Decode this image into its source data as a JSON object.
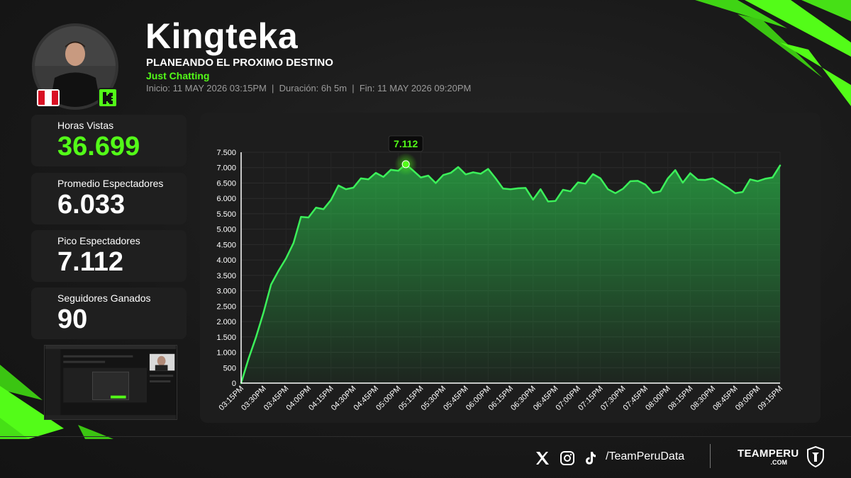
{
  "streamer": {
    "name": "Kingteka",
    "title": "PLANEANDO EL PROXIMO DESTINO",
    "category": "Just Chatting",
    "meta": "Inicio: 11 MAY 2026 03:15PM  |  Duración: 6h 5m  |  Fin: 11 MAY 2026 09:20PM"
  },
  "stats": [
    {
      "label": "Horas Vistas",
      "value": "36.699",
      "accent": true
    },
    {
      "label": "Promedio Espectadores",
      "value": "6.033",
      "accent": false
    },
    {
      "label": "Pico Espectadores",
      "value": "7.112",
      "accent": false
    },
    {
      "label": "Seguidores Ganados",
      "value": "90",
      "accent": false
    }
  ],
  "footer": {
    "handle": "/TeamPeruData",
    "brand": "TEAMPERU",
    "brand_suffix": ".COM",
    "icons": [
      "x-icon",
      "instagram-icon",
      "tiktok-icon"
    ]
  },
  "colors": {
    "accent": "#53fc18",
    "line": "#3cf05a",
    "background": "#161616",
    "card": "#1f1f1f",
    "flag_red": "#d91023"
  },
  "chart_data": {
    "type": "area",
    "ylim": [
      0,
      7500
    ],
    "y_ticks": [
      0,
      500,
      1000,
      1500,
      2000,
      2500,
      3000,
      3500,
      4000,
      4500,
      5000,
      5500,
      6000,
      6500,
      7000,
      7500
    ],
    "y_tick_labels": [
      "0",
      "500",
      "1.000",
      "1.500",
      "2.000",
      "2.500",
      "3.000",
      "3.500",
      "4.000",
      "4.500",
      "5.000",
      "5.500",
      "6.000",
      "6.500",
      "7.000",
      "7.500"
    ],
    "x_tick_labels": [
      "03:15PM",
      "03:30PM",
      "03:45PM",
      "04:00PM",
      "04:15PM",
      "04:30PM",
      "04:45PM",
      "05:00PM",
      "05:15PM",
      "05:30PM",
      "05:45PM",
      "06:00PM",
      "06:15PM",
      "06:30PM",
      "06:45PM",
      "07:00PM",
      "07:15PM",
      "07:30PM",
      "07:45PM",
      "08:00PM",
      "08:15PM",
      "08:30PM",
      "08:45PM",
      "09:00PM",
      "09:15PM"
    ],
    "x_range": [
      0,
      360
    ],
    "grid": true,
    "series": [
      {
        "x": [
          0,
          5,
          10,
          15,
          20,
          25,
          30,
          35,
          40,
          45,
          50,
          55,
          60,
          65,
          70,
          75,
          80,
          85,
          90,
          95,
          100,
          105,
          110,
          115,
          120,
          125,
          130,
          135,
          140,
          145,
          150,
          155,
          160,
          165,
          170,
          175,
          180,
          185,
          190,
          195,
          200,
          205,
          210,
          215,
          220,
          225,
          230,
          235,
          240,
          245,
          250,
          255,
          260,
          265,
          270,
          275,
          280,
          285,
          290,
          295,
          300,
          305,
          310,
          315,
          320,
          325,
          330,
          335,
          340,
          345,
          350,
          355,
          360
        ],
        "y": [
          0,
          800,
          1500,
          2300,
          3200,
          3650,
          4050,
          4550,
          5400,
          5380,
          5700,
          5650,
          5950,
          6420,
          6300,
          6350,
          6650,
          6620,
          6830,
          6700,
          6930,
          6900,
          7112,
          6900,
          6680,
          6740,
          6500,
          6760,
          6830,
          7020,
          6780,
          6850,
          6800,
          6960,
          6650,
          6320,
          6300,
          6330,
          6340,
          5960,
          6300,
          5900,
          5920,
          6280,
          6230,
          6520,
          6480,
          6790,
          6650,
          6300,
          6170,
          6310,
          6560,
          6570,
          6450,
          6180,
          6230,
          6650,
          6920,
          6510,
          6820,
          6610,
          6600,
          6650,
          6500,
          6350,
          6170,
          6210,
          6620,
          6560,
          6640,
          6680,
          7070
        ]
      }
    ],
    "peak": {
      "x": 110,
      "value": 7112,
      "label": "7.112"
    }
  }
}
